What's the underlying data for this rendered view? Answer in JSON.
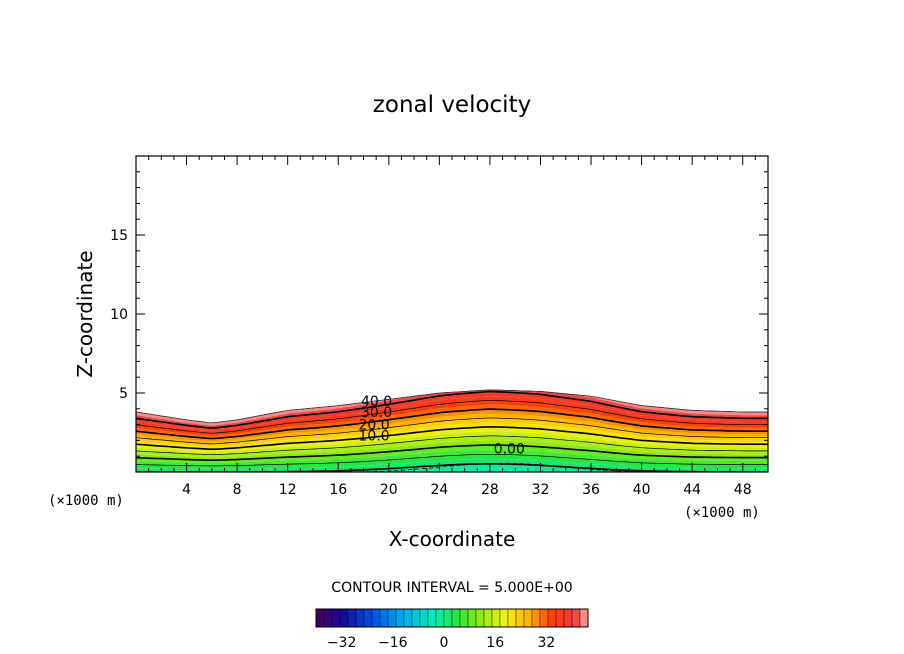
{
  "chart_data": {
    "type": "contour",
    "title": "zonal velocity",
    "xlabel": "X-coordinate",
    "ylabel": "Z-coordinate",
    "x_unit": "(×1000 m)",
    "z_unit": "(×1000 m)",
    "xlim": [
      0,
      50
    ],
    "ylim": [
      0,
      20
    ],
    "x_ticks": [
      4,
      8,
      12,
      16,
      20,
      24,
      28,
      32,
      36,
      40,
      44,
      48
    ],
    "x_tick_labels": [
      "4",
      "8",
      "12",
      "16",
      "20",
      "24",
      "28",
      "32",
      "36",
      "40",
      "44",
      "48"
    ],
    "y_ticks": [
      5,
      10,
      15
    ],
    "y_tick_labels": [
      "5",
      "10",
      "15"
    ],
    "contour_interval_text": "CONTOUR INTERVAL = 5.000E+00",
    "contour_labels": [
      {
        "text": "40.0",
        "x": 17.8,
        "z": 4.5
      },
      {
        "text": "30.0",
        "x": 17.8,
        "z": 3.8
      },
      {
        "text": "20.0",
        "x": 17.6,
        "z": 3.0
      },
      {
        "text": "10.0",
        "x": 17.6,
        "z": 2.3
      },
      {
        "text": "0.00",
        "x": 28.3,
        "z": 1.5
      }
    ],
    "field_top_profile": {
      "x": [
        0,
        4,
        6,
        8,
        12,
        16,
        20,
        24,
        28,
        32,
        36,
        40,
        44,
        48,
        50
      ],
      "z": [
        3.8,
        3.3,
        3.1,
        3.3,
        3.9,
        4.2,
        4.6,
        5.0,
        5.2,
        5.1,
        4.8,
        4.2,
        3.9,
        3.8,
        3.8
      ]
    },
    "color_scale": {
      "min": -40,
      "max": 45,
      "step": 2.5,
      "tick_values": [
        -32,
        -16,
        0,
        16,
        32
      ],
      "tick_labels": [
        "-32",
        "-16",
        "0",
        "16",
        "32"
      ]
    }
  }
}
